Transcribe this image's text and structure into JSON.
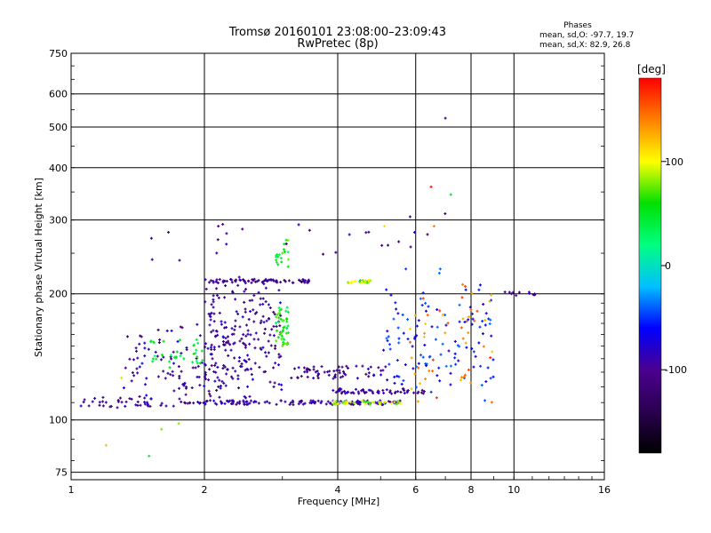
{
  "chart_data": {
    "type": "scatter",
    "title": "Tromsø 20160101 23:08:00–23:09:43",
    "subtitle": "RwPretec (8p)",
    "phase_info": {
      "heading": "Phases",
      "line_o": "mean, sd,O: -97.7, 19.7",
      "line_x": "mean, sd,X:  82.9, 26.8"
    },
    "xlabel": "Frequency [MHz]",
    "ylabel": "Stationary phase Virtual Height [km]",
    "x_scale": "log",
    "y_scale": "log",
    "xlim": [
      1,
      16
    ],
    "ylim": [
      72,
      750
    ],
    "x_ticks": [
      1,
      2,
      4,
      6,
      8,
      10,
      16
    ],
    "x_tick_labels": [
      "1",
      "2",
      "4",
      "6",
      "8",
      "10",
      "16"
    ],
    "y_ticks": [
      75,
      100,
      200,
      300,
      400,
      500,
      600,
      750
    ],
    "y_tick_labels": [
      "75",
      "100",
      "200",
      "300",
      "400",
      "500",
      "600",
      "750"
    ],
    "grid": true,
    "colorbar": {
      "label": "[deg]",
      "range": [
        -180,
        180
      ],
      "ticks": [
        100,
        0,
        -100
      ],
      "tick_labels": [
        "100",
        "0",
        "-100"
      ],
      "colors": [
        "#000000",
        "#2a0050",
        "#4a0090",
        "#0000ff",
        "#00c0ff",
        "#00ff80",
        "#00e000",
        "#ffff00",
        "#ff8000",
        "#ff0000"
      ]
    },
    "point_groups": [
      {
        "name": "E-trace",
        "x_from": 1.0,
        "x_to": 1.8,
        "y_from": 107,
        "y_to": 112,
        "n": 40,
        "phase": -100,
        "spread": 0.02
      },
      {
        "name": "F-lower-trace",
        "x_from": 1.8,
        "x_to": 5.6,
        "y_from": 110,
        "y_to": 110,
        "n": 140,
        "phase": -95,
        "spread": 0.012
      },
      {
        "name": "F-lower-yellow",
        "x_from": 3.9,
        "x_to": 5.6,
        "y_from": 110,
        "y_to": 110,
        "n": 45,
        "phase": 90,
        "spread": 0.01
      },
      {
        "name": "F-upper-trace",
        "x_from": 2.0,
        "x_to": 3.5,
        "y_from": 215,
        "y_to": 214,
        "n": 70,
        "phase": -105,
        "spread": 0.01
      },
      {
        "name": "F-upper-yellow",
        "x_from": 4.2,
        "x_to": 4.8,
        "y_from": 214,
        "y_to": 214,
        "n": 20,
        "phase": 90,
        "spread": 0.008
      },
      {
        "name": "diffuse-low",
        "x_from": 1.3,
        "x_to": 2.6,
        "y_from": 115,
        "y_to": 160,
        "n": 140,
        "phase": -95,
        "spread": 0.09
      },
      {
        "name": "diffuse-mid",
        "x_from": 2.0,
        "x_to": 3.0,
        "y_from": 125,
        "y_to": 200,
        "n": 170,
        "phase": -100,
        "spread": 0.12
      },
      {
        "name": "green-cluster-1",
        "x_from": 1.5,
        "x_to": 2.0,
        "y_from": 135,
        "y_to": 150,
        "n": 35,
        "phase": 40,
        "spread": 0.06
      },
      {
        "name": "green-cluster-2",
        "x_from": 2.9,
        "x_to": 3.1,
        "y_from": 150,
        "y_to": 180,
        "n": 45,
        "phase": 55,
        "spread": 0.05
      },
      {
        "name": "green-cluster-3",
        "x_from": 2.9,
        "x_to": 3.1,
        "y_from": 230,
        "y_to": 270,
        "n": 20,
        "phase": 55,
        "spread": 0.05
      },
      {
        "name": "mid-band-1",
        "x_from": 3.1,
        "x_to": 5.2,
        "y_from": 130,
        "y_to": 130,
        "n": 60,
        "phase": -100,
        "spread": 0.035
      },
      {
        "name": "mid-band-2",
        "x_from": 3.9,
        "x_to": 6.4,
        "y_from": 117,
        "y_to": 117,
        "n": 60,
        "phase": -100,
        "spread": 0.015
      },
      {
        "name": "mixed-upper-right",
        "x_from": 5.0,
        "x_to": 9.0,
        "y_from": 120,
        "y_to": 210,
        "n": 120,
        "phase": -60,
        "spread": 0.12
      },
      {
        "name": "orange-right",
        "x_from": 5.8,
        "x_to": 9.2,
        "y_from": 118,
        "y_to": 200,
        "n": 50,
        "phase": 140,
        "spread": 0.1
      },
      {
        "name": "right-trace",
        "x_from": 9.5,
        "x_to": 11.5,
        "y_from": 200,
        "y_to": 200,
        "n": 12,
        "phase": -100,
        "spread": 0.01
      },
      {
        "name": "sparse-top",
        "x_from": 1.5,
        "x_to": 7.0,
        "y_from": 240,
        "y_to": 300,
        "n": 25,
        "phase": -100,
        "spread": 0.08
      }
    ],
    "isolated_points": [
      {
        "x": 7.0,
        "y": 525,
        "phase": -100
      },
      {
        "x": 6.5,
        "y": 360,
        "phase": 175
      },
      {
        "x": 7.2,
        "y": 345,
        "phase": 50
      },
      {
        "x": 5.1,
        "y": 290,
        "phase": 110
      },
      {
        "x": 6.6,
        "y": 290,
        "phase": 140
      },
      {
        "x": 1.5,
        "y": 82,
        "phase": 40
      },
      {
        "x": 1.2,
        "y": 87,
        "phase": 120
      },
      {
        "x": 1.6,
        "y": 95,
        "phase": 80
      },
      {
        "x": 1.75,
        "y": 98,
        "phase": 80
      },
      {
        "x": 1.3,
        "y": 126,
        "phase": 90
      },
      {
        "x": 2.2,
        "y": 293,
        "phase": -100
      },
      {
        "x": 2.15,
        "y": 290,
        "phase": -100
      }
    ]
  }
}
